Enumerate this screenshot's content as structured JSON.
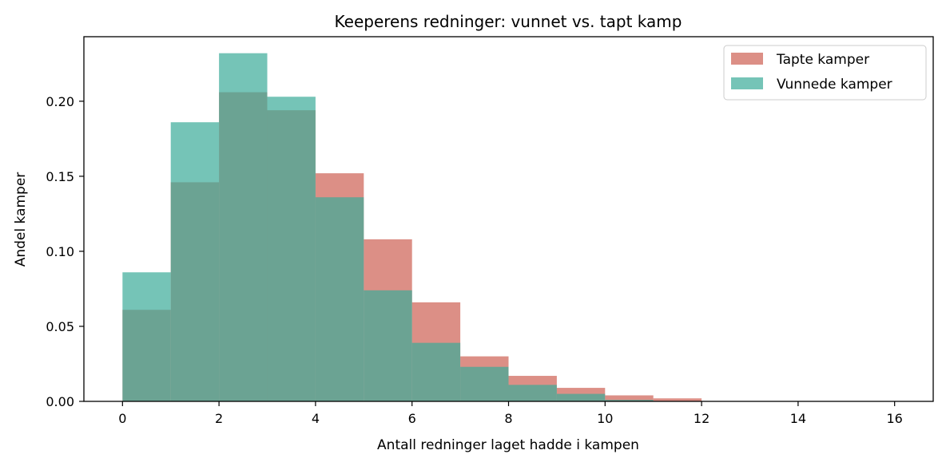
{
  "chart_data": {
    "type": "bar",
    "title": "Keeperens redninger: vunnet vs. tapt kamp",
    "xlabel": "Antall redninger laget hadde i kampen",
    "ylabel": "Andel kamper",
    "xlim": [
      -0.8,
      16.8
    ],
    "ylim": [
      0,
      0.243
    ],
    "xticks": [
      "0",
      "2",
      "4",
      "6",
      "8",
      "10",
      "12",
      "14",
      "16"
    ],
    "yticks": [
      "0.00",
      "0.05",
      "0.10",
      "0.15",
      "0.20"
    ],
    "bin_edges": [
      0,
      1,
      2,
      3,
      4,
      5,
      6,
      7,
      8,
      9,
      10,
      11,
      12,
      13,
      14,
      15,
      16
    ],
    "series": [
      {
        "name": "Tapte kamper",
        "color": "#d0695e",
        "values": [
          0.061,
          0.146,
          0.206,
          0.194,
          0.152,
          0.108,
          0.066,
          0.03,
          0.017,
          0.009,
          0.004,
          0.002,
          0,
          0,
          0,
          0
        ]
      },
      {
        "name": "Vunnede kamper",
        "color": "#3aab99",
        "values": [
          0.086,
          0.186,
          0.232,
          0.203,
          0.136,
          0.074,
          0.039,
          0.023,
          0.011,
          0.005,
          0.001,
          0,
          0,
          0,
          0,
          0
        ]
      }
    ],
    "legend_position": "top-right",
    "grid": false
  }
}
